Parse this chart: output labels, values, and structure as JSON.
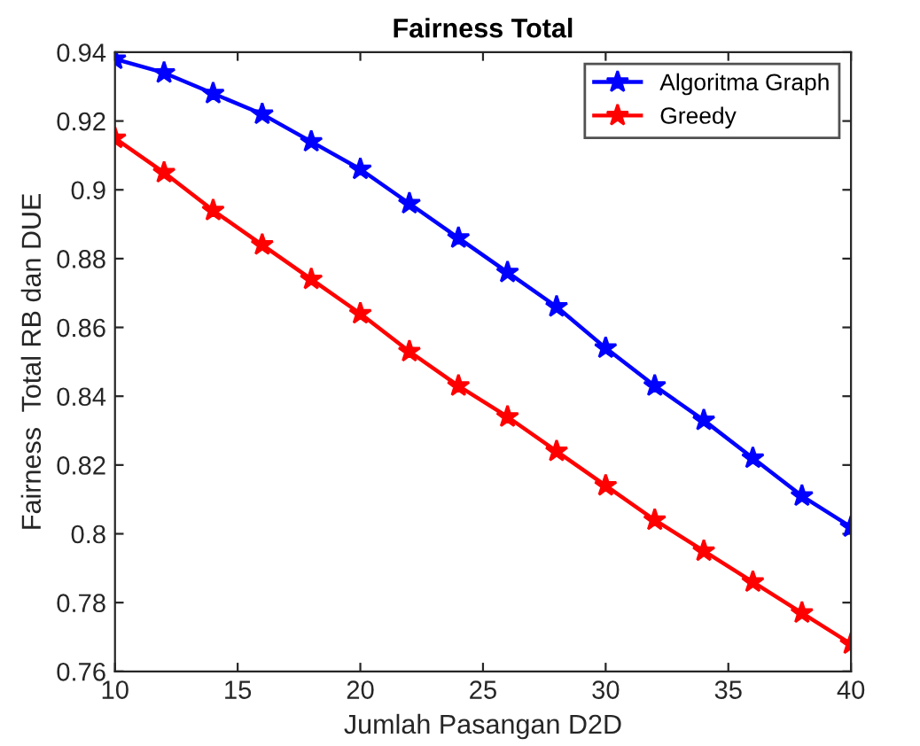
{
  "chart_data": {
    "type": "line",
    "title": "Fairness Total",
    "xlabel": "Jumlah Pasangan D2D",
    "ylabel": "Fairness  Total RB dan DUE",
    "x": [
      10,
      12,
      14,
      16,
      18,
      20,
      22,
      24,
      26,
      28,
      30,
      32,
      34,
      36,
      38,
      40
    ],
    "series": [
      {
        "name": "Algoritma Graph",
        "color": "#0000ff",
        "values": [
          0.938,
          0.934,
          0.928,
          0.922,
          0.914,
          0.906,
          0.896,
          0.886,
          0.876,
          0.866,
          0.854,
          0.843,
          0.833,
          0.822,
          0.811,
          0.802
        ]
      },
      {
        "name": "Greedy",
        "color": "#ff0000",
        "values": [
          0.915,
          0.905,
          0.894,
          0.884,
          0.874,
          0.864,
          0.853,
          0.843,
          0.834,
          0.824,
          0.814,
          0.804,
          0.795,
          0.786,
          0.777,
          0.768
        ]
      }
    ],
    "xlim": [
      10,
      40
    ],
    "ylim": [
      0.76,
      0.94
    ],
    "xticks": [
      10,
      15,
      20,
      25,
      30,
      35,
      40
    ],
    "yticks": [
      0.76,
      0.78,
      {
        "value": 0.8,
        "label": "0.8"
      },
      0.82,
      0.84,
      0.86,
      0.88,
      {
        "value": 0.9,
        "label": "0.9"
      },
      0.92,
      0.94
    ],
    "grid": false,
    "legend": "top right",
    "marker": "star",
    "line_style": "solid"
  }
}
